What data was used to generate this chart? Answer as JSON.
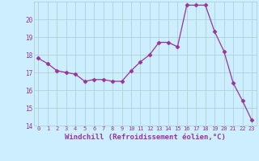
{
  "x": [
    0,
    1,
    2,
    3,
    4,
    5,
    6,
    7,
    8,
    9,
    10,
    11,
    12,
    13,
    14,
    15,
    16,
    17,
    18,
    19,
    20,
    21,
    22,
    23
  ],
  "y": [
    17.8,
    17.5,
    17.1,
    17.0,
    16.9,
    16.5,
    16.6,
    16.6,
    16.5,
    16.5,
    17.1,
    17.6,
    18.0,
    18.7,
    18.7,
    18.45,
    20.8,
    20.8,
    20.8,
    19.3,
    18.2,
    16.4,
    15.4,
    14.3
  ],
  "line_color": "#993399",
  "marker": "D",
  "marker_size": 2.5,
  "bg_color": "#cceeff",
  "grid_color": "#aacccc",
  "xlabel": "Windchill (Refroidissement éolien,°C)",
  "xlabel_color": "#993399",
  "tick_color": "#993399",
  "ylim": [
    14,
    21
  ],
  "xlim": [
    -0.5,
    23.5
  ],
  "yticks": [
    14,
    15,
    16,
    17,
    18,
    19,
    20
  ],
  "xticks": [
    0,
    1,
    2,
    3,
    4,
    5,
    6,
    7,
    8,
    9,
    10,
    11,
    12,
    13,
    14,
    15,
    16,
    17,
    18,
    19,
    20,
    21,
    22,
    23
  ],
  "ytick_labels": [
    "14",
    "15",
    "16",
    "17",
    "18",
    "19",
    "20"
  ],
  "xtick_labels": [
    "0",
    "1",
    "2",
    "3",
    "4",
    "5",
    "6",
    "7",
    "8",
    "9",
    "10",
    "11",
    "12",
    "13",
    "14",
    "15",
    "16",
    "17",
    "18",
    "19",
    "20",
    "21",
    "22",
    "23"
  ]
}
